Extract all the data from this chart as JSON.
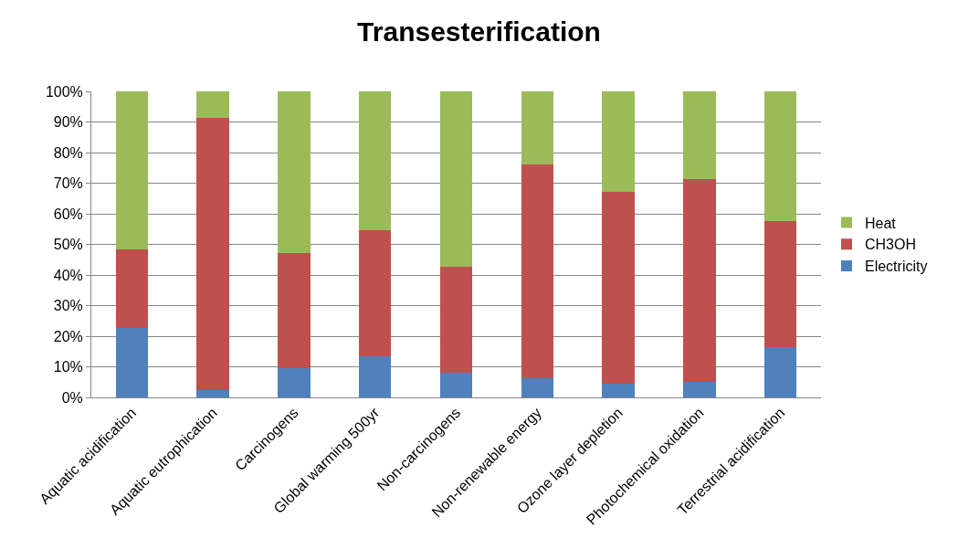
{
  "chart_data": {
    "type": "bar",
    "title": "Transesterification",
    "stacked": true,
    "categories": [
      "Aquatic acidification",
      "Aquatic eutrophication",
      "Carcinogens",
      "Global warming 500yr",
      "Non-carcinogens",
      "Non-renewable energy",
      "Ozone layer depletion",
      "Photochemical oxidation",
      "Terrestrial acidification"
    ],
    "series": [
      {
        "name": "Electricity",
        "color": "#4f81bd",
        "values": [
          22.8,
          2.3,
          9.6,
          13.4,
          8.0,
          6.3,
          4.4,
          5.2,
          16.5
        ]
      },
      {
        "name": "CH3OH",
        "color": "#c0504d",
        "values": [
          25.6,
          89.1,
          37.6,
          41.3,
          34.8,
          69.7,
          62.7,
          66.0,
          41.1
        ]
      },
      {
        "name": "Heat",
        "color": "#9bbb59",
        "values": [
          51.6,
          8.6,
          52.8,
          45.3,
          57.2,
          24.0,
          32.9,
          28.8,
          42.4
        ]
      }
    ],
    "ylim": [
      0,
      100
    ],
    "yticks": [
      {
        "value": 0,
        "label": "0%"
      },
      {
        "value": 10,
        "label": "10%"
      },
      {
        "value": 20,
        "label": "20%"
      },
      {
        "value": 30,
        "label": "30%"
      },
      {
        "value": 40,
        "label": "40%"
      },
      {
        "value": 50,
        "label": "50%"
      },
      {
        "value": 60,
        "label": "60%"
      },
      {
        "value": 70,
        "label": "70%"
      },
      {
        "value": 80,
        "label": "80%"
      },
      {
        "value": 90,
        "label": "90%"
      },
      {
        "value": 100,
        "label": "100%"
      }
    ],
    "grid": "y",
    "legend": "right"
  }
}
